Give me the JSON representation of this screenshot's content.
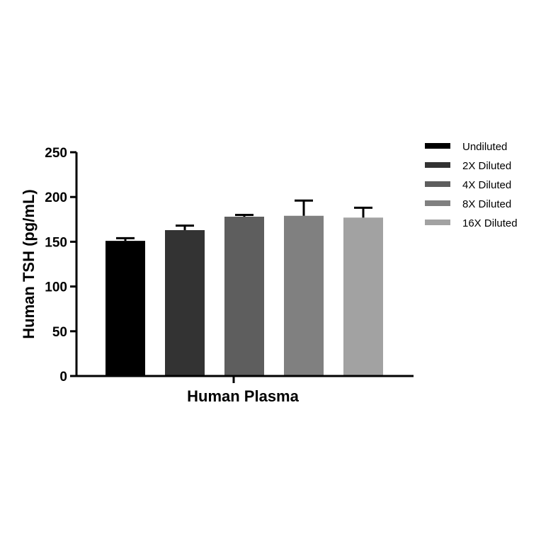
{
  "chart_data": {
    "type": "bar",
    "xlabel": "Human Plasma",
    "ylabel": "Human TSH (pg/mL)",
    "ylim": [
      0,
      250
    ],
    "yticks": [
      0,
      50,
      100,
      150,
      200,
      250
    ],
    "legend_position": "right",
    "grid": false,
    "series": [
      {
        "name": "Undiluted",
        "value": 151,
        "error": 3,
        "color": "#000000"
      },
      {
        "name": "2X Diluted",
        "value": 163,
        "error": 5,
        "color": "#333333"
      },
      {
        "name": "4X Diluted",
        "value": 178,
        "error": 2,
        "color": "#5e5e5e"
      },
      {
        "name": "8X Diluted",
        "value": 179,
        "error": 17,
        "color": "#808080"
      },
      {
        "name": "16X Diluted",
        "value": 177,
        "error": 11,
        "color": "#a2a2a2"
      }
    ]
  }
}
